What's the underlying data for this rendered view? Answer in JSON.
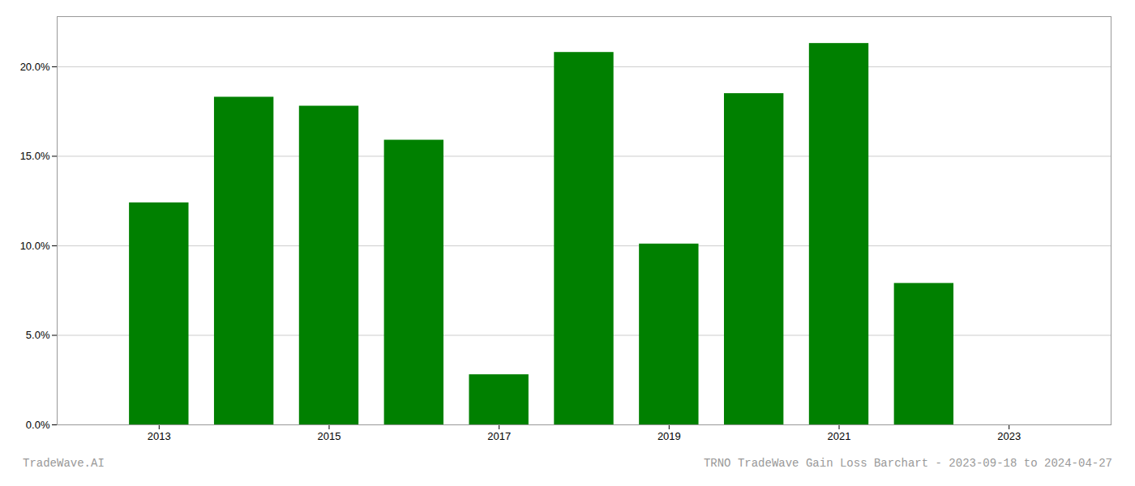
{
  "chart_data": {
    "type": "bar",
    "x": [
      2013,
      2014,
      2015,
      2016,
      2017,
      2018,
      2019,
      2020,
      2021,
      2022
    ],
    "values": [
      0.124,
      0.183,
      0.178,
      0.159,
      0.028,
      0.208,
      0.101,
      0.185,
      0.213,
      0.079
    ],
    "color": "#008000",
    "xlim": [
      2011.8,
      2024.2
    ],
    "xticks": [
      2013,
      2015,
      2017,
      2019,
      2021,
      2023
    ],
    "ylim": [
      0.0,
      0.228
    ],
    "yticks": [
      {
        "value": 0.0,
        "label": "0.0%"
      },
      {
        "value": 0.05,
        "label": "5.0%"
      },
      {
        "value": 0.1,
        "label": "10.0%"
      },
      {
        "value": 0.15,
        "label": "15.0%"
      },
      {
        "value": 0.2,
        "label": "20.0%"
      }
    ],
    "grid": true,
    "annotations": [
      "TradeWave.AI",
      "TRNO TradeWave Gain Loss Barchart - 2023-09-18 to 2024-04-27"
    ]
  }
}
